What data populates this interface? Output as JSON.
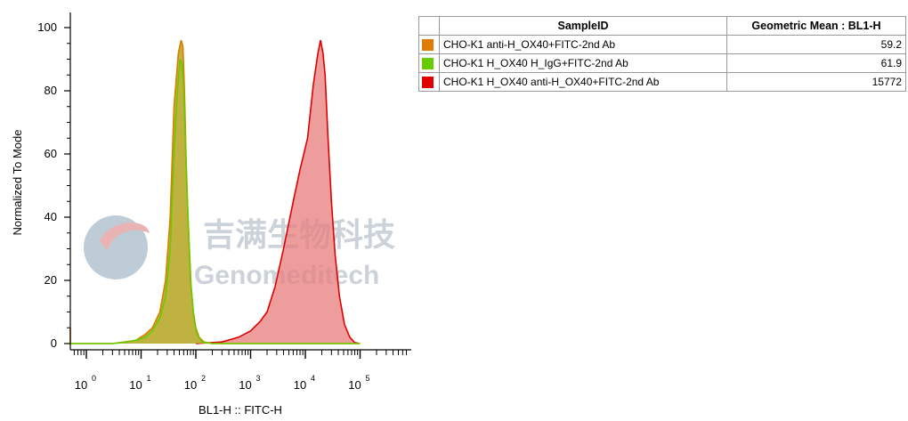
{
  "chart_data": {
    "type": "histogram-overlay",
    "xlabel": "BL1-H :: FITC-H",
    "ylabel": "Normalized To Mode",
    "x_scale": "log",
    "x_ticks": [
      {
        "base": "10",
        "exp": "0"
      },
      {
        "base": "10",
        "exp": "1"
      },
      {
        "base": "10",
        "exp": "2"
      },
      {
        "base": "10",
        "exp": "3"
      },
      {
        "base": "10",
        "exp": "4"
      },
      {
        "base": "10",
        "exp": "5"
      }
    ],
    "x_tick_values": [
      1,
      10,
      100,
      1000,
      10000,
      100000
    ],
    "y_ticks": [
      "0",
      "20",
      "40",
      "60",
      "80",
      "100"
    ],
    "y_tick_values": [
      0,
      20,
      40,
      60,
      80,
      100
    ],
    "ylim": [
      0,
      100
    ],
    "series": [
      {
        "name": "CHO-K1 anti-H_OX40+FITC-2nd Ab",
        "color": "#E07A00",
        "fill": "#B5A51E",
        "points": [
          [
            0.25,
            5
          ],
          [
            0.4,
            0
          ],
          [
            3,
            0
          ],
          [
            5,
            0.5
          ],
          [
            8,
            1
          ],
          [
            12,
            3
          ],
          [
            16,
            5
          ],
          [
            22,
            10
          ],
          [
            28,
            20
          ],
          [
            34,
            40
          ],
          [
            40,
            75
          ],
          [
            48,
            92
          ],
          [
            54,
            96
          ],
          [
            58,
            94
          ],
          [
            62,
            80
          ],
          [
            66,
            60
          ],
          [
            72,
            40
          ],
          [
            80,
            20
          ],
          [
            90,
            10
          ],
          [
            100,
            5
          ],
          [
            115,
            2
          ],
          [
            140,
            0.5
          ],
          [
            200,
            0
          ],
          [
            25000,
            0
          ],
          [
            100000,
            0
          ]
        ]
      },
      {
        "name": "CHO-K1 H_OX40 H_IgG+FITC-2nd Ab",
        "color": "#66CC00",
        "fill": "#B5A51E",
        "points": [
          [
            0.4,
            0
          ],
          [
            3,
            0
          ],
          [
            5,
            0.4
          ],
          [
            8,
            1
          ],
          [
            12,
            2
          ],
          [
            16,
            4
          ],
          [
            22,
            8
          ],
          [
            28,
            15
          ],
          [
            34,
            30
          ],
          [
            40,
            60
          ],
          [
            46,
            80
          ],
          [
            52,
            90
          ],
          [
            56,
            88
          ],
          [
            60,
            80
          ],
          [
            64,
            65
          ],
          [
            68,
            50
          ],
          [
            74,
            35
          ],
          [
            82,
            18
          ],
          [
            92,
            8
          ],
          [
            105,
            3
          ],
          [
            130,
            0.5
          ],
          [
            200,
            0
          ],
          [
            100000,
            0
          ]
        ]
      },
      {
        "name": "CHO-K1 H_OX40 anti-H_OX40+FITC-2nd Ab",
        "color": "#E00000",
        "fill": "#E87C7C",
        "points": [
          [
            100,
            0
          ],
          [
            300,
            0.5
          ],
          [
            600,
            2
          ],
          [
            1000,
            4
          ],
          [
            1500,
            7
          ],
          [
            2000,
            10
          ],
          [
            2800,
            18
          ],
          [
            4000,
            30
          ],
          [
            6000,
            45
          ],
          [
            8000,
            55
          ],
          [
            11000,
            65
          ],
          [
            14000,
            82
          ],
          [
            17000,
            92
          ],
          [
            19000,
            96
          ],
          [
            21000,
            92
          ],
          [
            23000,
            85
          ],
          [
            26000,
            65
          ],
          [
            30000,
            45
          ],
          [
            35000,
            28
          ],
          [
            42000,
            15
          ],
          [
            52000,
            6
          ],
          [
            65000,
            2
          ],
          [
            80000,
            0.3
          ],
          [
            100000,
            0
          ]
        ]
      }
    ]
  },
  "legend": {
    "header_sample": "SampleID",
    "header_value": "Geometric Mean : BL1-H",
    "rows": [
      {
        "swatch": "#E07A00",
        "name": "CHO-K1 anti-H_OX40+FITC-2nd Ab",
        "value": "59.2"
      },
      {
        "swatch": "#66CC00",
        "name": "CHO-K1 H_OX40 H_IgG+FITC-2nd Ab",
        "value": "61.9"
      },
      {
        "swatch": "#E00000",
        "name": "CHO-K1 H_OX40 anti-H_OX40+FITC-2nd Ab",
        "value": "15772"
      }
    ]
  },
  "watermark": {
    "cn": "吉满生物科技",
    "en": "Genomeditech"
  }
}
